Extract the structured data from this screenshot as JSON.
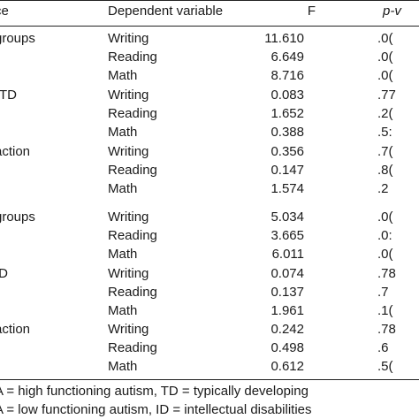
{
  "header": {
    "source": "ce",
    "dependent": "Dependent variable",
    "f": "F",
    "p": "p-v"
  },
  "rows": [
    {
      "source": "groups",
      "dep": "Writing",
      "f": "11.610",
      "p": ".0("
    },
    {
      "source": "",
      "dep": "Reading",
      "f": "6.649",
      "p": ".0("
    },
    {
      "source": "",
      "dep": "Math",
      "f": "8.716",
      "p": ".0("
    },
    {
      "source": "-TD",
      "dep": "Writing",
      "f": "0.083",
      "p": ".77"
    },
    {
      "source": "",
      "dep": "Reading",
      "f": "1.652",
      "p": ".2("
    },
    {
      "source": "",
      "dep": "Math",
      "f": "0.388",
      "p": ".5:"
    },
    {
      "source": "action",
      "dep": "Writing",
      "f": "0.356",
      "p": ".7("
    },
    {
      "source": "",
      "dep": "Reading",
      "f": "0.147",
      "p": ".8("
    },
    {
      "source": "",
      "dep": "Math",
      "f": "1.574",
      "p": ".2"
    },
    {
      "source": "groups",
      "dep": "Writing",
      "f": "5.034",
      "p": ".0("
    },
    {
      "source": "",
      "dep": "Reading",
      "f": "3.665",
      "p": ".0:"
    },
    {
      "source": "",
      "dep": "Math",
      "f": "6.011",
      "p": ".0("
    },
    {
      "source": "ID",
      "dep": "Writing",
      "f": "0.074",
      "p": ".78"
    },
    {
      "source": "",
      "dep": "Reading",
      "f": "0.137",
      "p": ".7"
    },
    {
      "source": "",
      "dep": "Math",
      "f": "1.961",
      "p": ".1("
    },
    {
      "source": "action",
      "dep": "Writing",
      "f": "0.242",
      "p": ".78"
    },
    {
      "source": "",
      "dep": "Reading",
      "f": "0.498",
      "p": ".6"
    },
    {
      "source": "",
      "dep": "Math",
      "f": "0.612",
      "p": ".5("
    }
  ],
  "notes": [
    "A = high functioning autism, TD = typically developing",
    "A = low functioning autism, ID = intellectual disabilities"
  ]
}
